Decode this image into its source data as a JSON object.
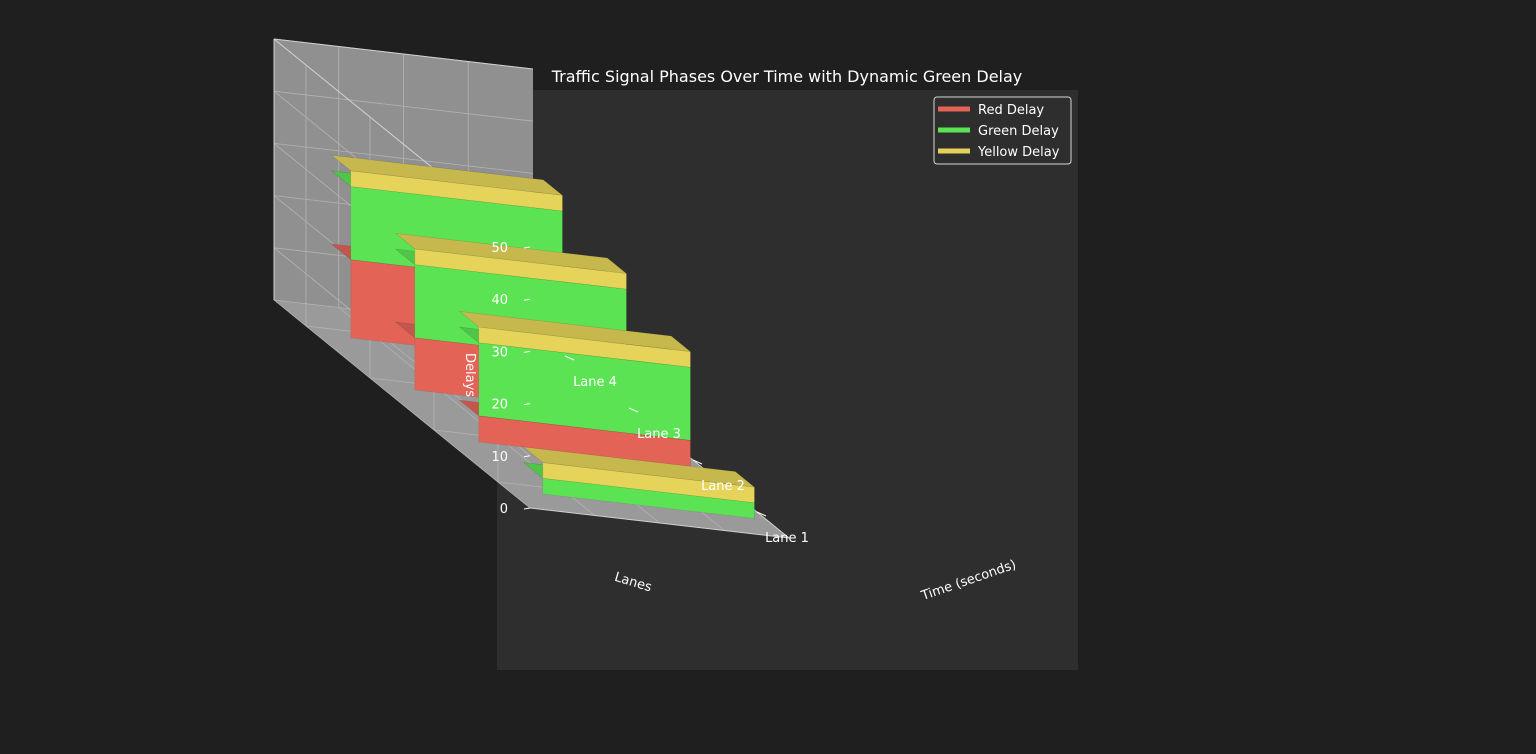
{
  "chart_data": {
    "type": "bar3d",
    "title": "Traffic Signal Phases Over Time with Dynamic Green Delay",
    "xlabel": "Time (seconds)",
    "ylabel": "Lanes",
    "zlabel": "Delays",
    "categories": [
      "Lane 1",
      "Lane 2",
      "Lane 3",
      "Lane 4"
    ],
    "zlim": [
      0,
      50
    ],
    "zticks": [
      0,
      10,
      20,
      30,
      40,
      50
    ],
    "grid": true,
    "legend_position": "top-right",
    "series": [
      {
        "name": "Red Delay",
        "color": "#e36357",
        "values": [
          0,
          5,
          10,
          15
        ]
      },
      {
        "name": "Green Delay",
        "color": "#5ce354",
        "values": [
          3,
          14,
          14,
          14
        ]
      },
      {
        "name": "Yellow Delay",
        "color": "#e5d35a",
        "values": [
          3,
          3,
          3,
          3
        ]
      }
    ]
  }
}
